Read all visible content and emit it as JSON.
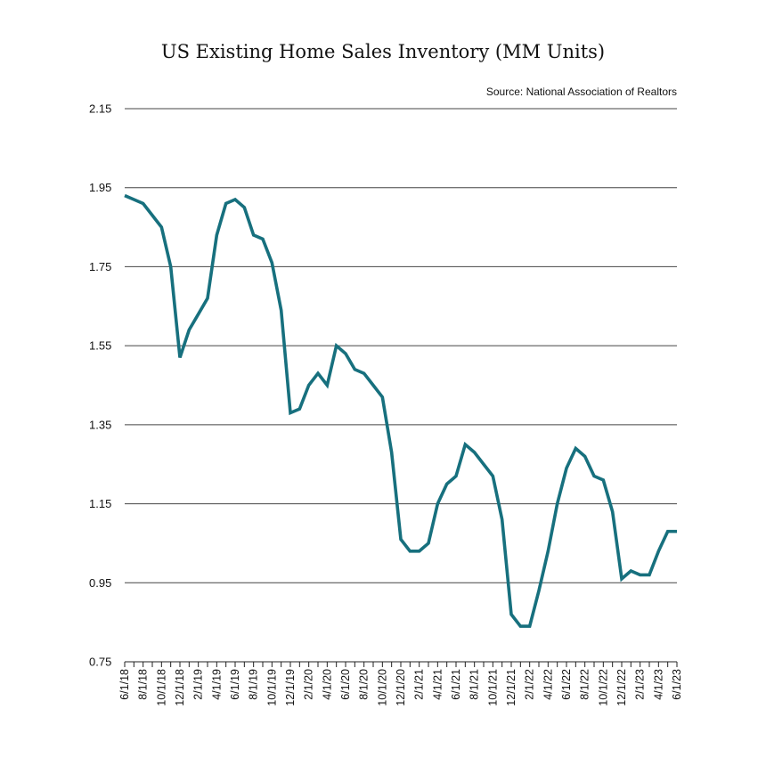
{
  "chart_data": {
    "type": "line",
    "title": "US Existing Home Sales Inventory (MM Units)",
    "source": "Source: National Association of Realtors",
    "xlabel": "",
    "ylabel": "",
    "ylim": [
      0.75,
      2.15
    ],
    "yticks": [
      "2.15",
      "1.95",
      "1.75",
      "1.55",
      "1.35",
      "1.15",
      "0.95",
      "0.75"
    ],
    "grid": true,
    "line_color": "#17707e",
    "x_tick_labels": [
      "6/1/18",
      "8/1/18",
      "10/1/18",
      "12/1/18",
      "2/1/19",
      "4/1/19",
      "6/1/19",
      "8/1/19",
      "10/1/19",
      "12/1/19",
      "2/1/20",
      "4/1/20",
      "6/1/20",
      "8/1/20",
      "10/1/20",
      "12/1/20",
      "2/1/21",
      "4/1/21",
      "6/1/21",
      "8/1/21",
      "10/1/21",
      "12/1/21",
      "2/1/22",
      "4/1/22",
      "6/1/22",
      "8/1/22",
      "10/1/22",
      "12/1/22",
      "2/1/23",
      "4/1/23",
      "6/1/23"
    ],
    "x": [
      "2018-06",
      "2018-07",
      "2018-08",
      "2018-09",
      "2018-10",
      "2018-11",
      "2018-12",
      "2019-01",
      "2019-02",
      "2019-03",
      "2019-04",
      "2019-05",
      "2019-06",
      "2019-07",
      "2019-08",
      "2019-09",
      "2019-10",
      "2019-11",
      "2019-12",
      "2020-01",
      "2020-02",
      "2020-03",
      "2020-04",
      "2020-05",
      "2020-06",
      "2020-07",
      "2020-08",
      "2020-09",
      "2020-10",
      "2020-11",
      "2020-12",
      "2021-01",
      "2021-02",
      "2021-03",
      "2021-04",
      "2021-05",
      "2021-06",
      "2021-07",
      "2021-08",
      "2021-09",
      "2021-10",
      "2021-11",
      "2021-12",
      "2022-01",
      "2022-02",
      "2022-03",
      "2022-04",
      "2022-05",
      "2022-06",
      "2022-07",
      "2022-08",
      "2022-09",
      "2022-10",
      "2022-11",
      "2022-12",
      "2023-01",
      "2023-02",
      "2023-03",
      "2023-04",
      "2023-05",
      "2023-06"
    ],
    "series": [
      {
        "values": [
          1.93,
          1.92,
          1.91,
          1.88,
          1.85,
          1.75,
          1.52,
          1.59,
          1.63,
          1.67,
          1.83,
          1.91,
          1.92,
          1.9,
          1.83,
          1.82,
          1.76,
          1.64,
          1.38,
          1.39,
          1.45,
          1.48,
          1.45,
          1.55,
          1.53,
          1.49,
          1.48,
          1.45,
          1.42,
          1.28,
          1.06,
          1.03,
          1.03,
          1.05,
          1.15,
          1.2,
          1.22,
          1.3,
          1.28,
          1.25,
          1.22,
          1.11,
          0.87,
          0.84,
          0.84,
          0.93,
          1.03,
          1.15,
          1.24,
          1.29,
          1.27,
          1.22,
          1.21,
          1.13,
          0.96,
          0.98,
          0.97,
          0.97,
          1.03,
          1.08,
          1.08
        ]
      }
    ]
  }
}
